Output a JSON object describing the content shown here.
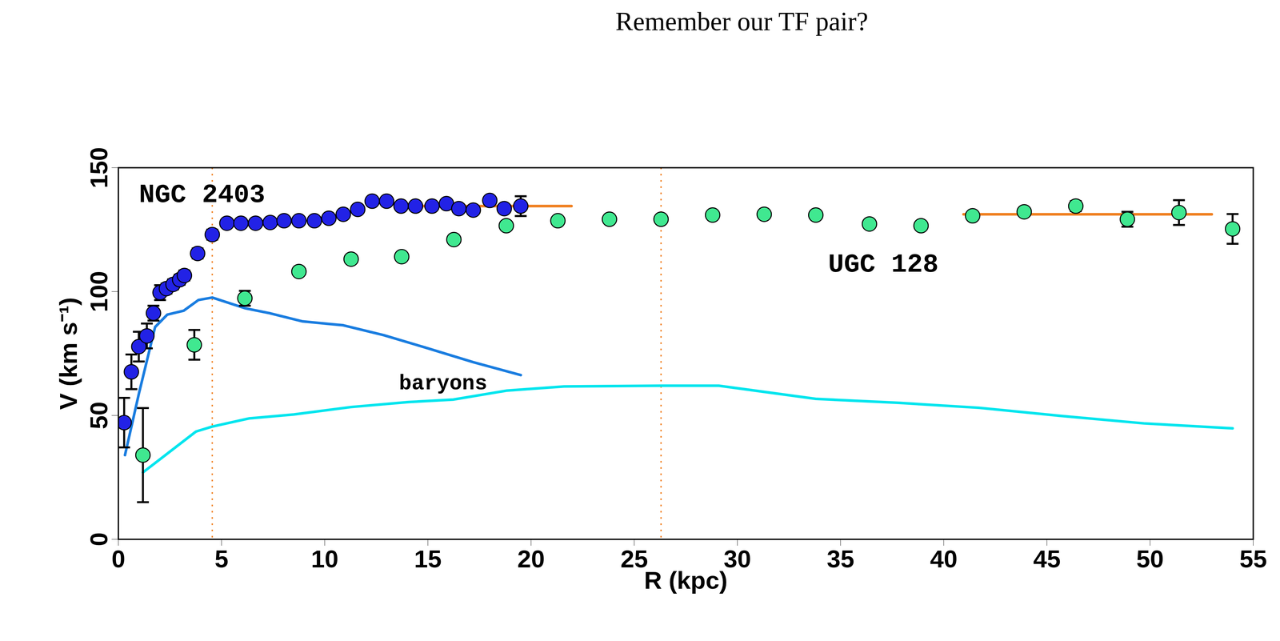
{
  "chart_data": {
    "type": "scatter",
    "title": "Remember our TF pair?",
    "x_label": "R (kpc)",
    "y_label": "V (km s⁻¹)",
    "xlim": [
      0,
      55
    ],
    "xticks": [
      0,
      5,
      10,
      15,
      20,
      25,
      30,
      35,
      40,
      45,
      50,
      55
    ],
    "ylim": [
      0,
      150
    ],
    "yticks": [
      0,
      50,
      100,
      150
    ],
    "grid": false,
    "reference_lines": [
      {
        "x": 4.55,
        "color": "#f08020",
        "line_style": "dotted"
      },
      {
        "x": 26.3,
        "color": "#f08020",
        "line_style": "dotted"
      }
    ],
    "series": [
      {
        "name": "baryons",
        "type": "line",
        "color": "#1a7de0",
        "line_style": "solid",
        "label_at": [
          13.6,
          63.3
        ],
        "x": [
          0.32,
          1.0,
          1.78,
          2.37,
          3.17,
          3.88,
          4.55,
          6.13,
          7.32,
          8.9,
          10.9,
          12.86,
          14.84,
          17.2,
          19.5
        ],
        "values": [
          34,
          59,
          85.7,
          90.7,
          92.3,
          96.6,
          97.6,
          93.3,
          91.3,
          88,
          86.4,
          82.4,
          77.5,
          71.5,
          66.3
        ]
      },
      {
        "type": "line",
        "color": "#00e5ee",
        "line_style": "solid",
        "x": [
          1.19,
          3.76,
          4.55,
          6.33,
          8.5,
          11.28,
          14.05,
          16.22,
          18.8,
          21.6,
          26.3,
          29.1,
          33.8,
          37.8,
          41.7,
          45.7,
          49.7,
          54.0
        ],
        "values": [
          27,
          43.5,
          45.5,
          48.8,
          50.4,
          53.4,
          55.4,
          56.4,
          60,
          61.7,
          62,
          62,
          56.7,
          55.1,
          53.1,
          49.8,
          46.8,
          44.8
        ]
      },
      {
        "type": "line",
        "color": "#f08020",
        "line_style": "solid",
        "x": [
          13.85,
          21.96
        ],
        "values": [
          134.5,
          134.5
        ]
      },
      {
        "type": "line",
        "color": "#f08020",
        "line_style": "solid",
        "x": [
          40.96,
          52.99
        ],
        "values": [
          131.2,
          131.2
        ]
      },
      {
        "name": "NGC 2403",
        "type": "scatter",
        "color": "#2222e6",
        "marker": "circle",
        "label_at": [
          1.0,
          139.5
        ],
        "x": [
          0.28,
          0.63,
          0.99,
          1.38,
          1.7,
          2.02,
          2.33,
          2.65,
          2.97,
          3.2,
          3.84,
          4.55,
          5.26,
          5.94,
          6.65,
          7.36,
          8.03,
          8.75,
          9.5,
          10.2,
          10.9,
          11.6,
          12.3,
          13.0,
          13.7,
          14.4,
          15.2,
          15.9,
          16.5,
          17.2,
          18.0,
          18.7,
          19.5
        ],
        "values": [
          47.1,
          67.6,
          77.8,
          82.1,
          91.3,
          99.6,
          101.2,
          102.9,
          104.8,
          106.5,
          115.4,
          123,
          127.6,
          127.6,
          127.6,
          127.9,
          128.6,
          128.6,
          128.6,
          129.6,
          131.2,
          133.2,
          136.5,
          136.5,
          134.5,
          134.5,
          134.5,
          135.5,
          133.5,
          132.9,
          136.8,
          133.5,
          134.5
        ],
        "errors": [
          10,
          7,
          6,
          5,
          3,
          3,
          2,
          2,
          2,
          2,
          2,
          2,
          1.5,
          1.5,
          1.5,
          1.5,
          1.5,
          1.5,
          1.5,
          1.5,
          1.5,
          1.5,
          1.5,
          1.5,
          1.5,
          1.5,
          1.5,
          1.5,
          1.5,
          1.5,
          1.5,
          1.5,
          4
        ]
      },
      {
        "name": "UGC 128",
        "type": "scatter",
        "color": "#40e890",
        "marker": "circle",
        "label_at": [
          34.4,
          111.4
        ],
        "x": [
          1.19,
          3.68,
          6.13,
          8.75,
          11.28,
          13.73,
          16.26,
          18.8,
          21.3,
          23.8,
          26.3,
          28.8,
          31.3,
          33.8,
          36.4,
          38.9,
          41.4,
          43.9,
          46.4,
          48.9,
          51.4,
          54.0
        ],
        "values": [
          34,
          78.5,
          97.3,
          108.1,
          113.1,
          114.1,
          121.0,
          126.6,
          128.6,
          129.2,
          129.2,
          130.9,
          131.2,
          130.9,
          127.3,
          126.6,
          130.6,
          132.2,
          134.5,
          129.2,
          131.9,
          125.3
        ],
        "errors": [
          19,
          6,
          3,
          1.5,
          1.5,
          1.5,
          1.5,
          1.5,
          1.5,
          1.5,
          1.5,
          1.5,
          1.5,
          1.5,
          1.5,
          1.5,
          1.5,
          1.5,
          2,
          3,
          5,
          6
        ]
      }
    ]
  }
}
